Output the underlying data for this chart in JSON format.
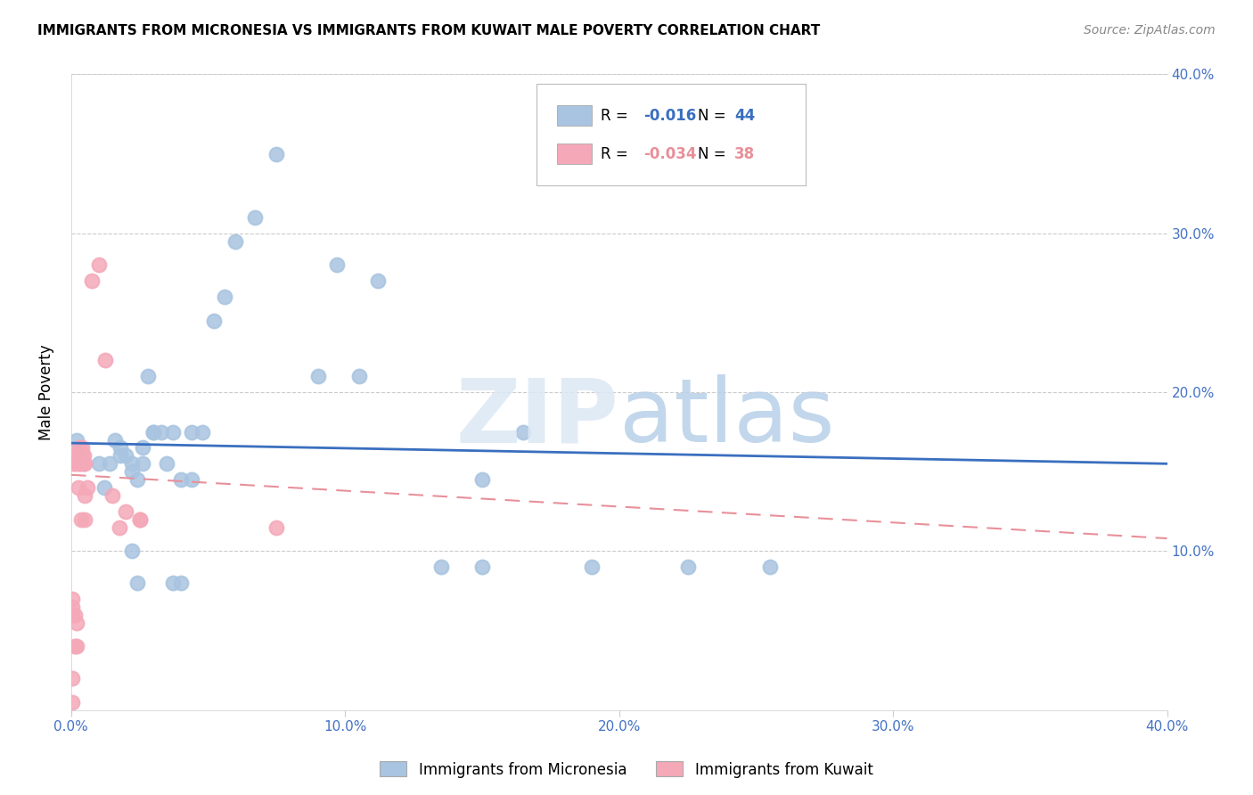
{
  "title": "IMMIGRANTS FROM MICRONESIA VS IMMIGRANTS FROM KUWAIT MALE POVERTY CORRELATION CHART",
  "source": "Source: ZipAtlas.com",
  "ylabel": "Male Poverty",
  "xlim": [
    0.0,
    0.4
  ],
  "ylim": [
    0.0,
    0.4
  ],
  "xtick_vals": [
    0.0,
    0.1,
    0.2,
    0.3,
    0.4
  ],
  "ytick_vals": [
    0.1,
    0.2,
    0.3,
    0.4
  ],
  "blue_R": -0.016,
  "blue_N": 44,
  "pink_R": -0.034,
  "pink_N": 38,
  "blue_color": "#a8c4e0",
  "pink_color": "#f4a8b8",
  "blue_line_color": "#3a6fbf",
  "pink_line_color": "#e8909a",
  "blue_scatter_x": [
    0.002,
    0.003,
    0.01,
    0.012,
    0.014,
    0.016,
    0.018,
    0.018,
    0.02,
    0.022,
    0.022,
    0.022,
    0.024,
    0.024,
    0.026,
    0.026,
    0.028,
    0.03,
    0.03,
    0.033,
    0.035,
    0.037,
    0.037,
    0.04,
    0.04,
    0.044,
    0.044,
    0.048,
    0.052,
    0.056,
    0.06,
    0.067,
    0.075,
    0.09,
    0.097,
    0.105,
    0.112,
    0.135,
    0.15,
    0.15,
    0.165,
    0.19,
    0.225,
    0.255
  ],
  "blue_scatter_y": [
    0.17,
    0.16,
    0.155,
    0.14,
    0.155,
    0.17,
    0.165,
    0.16,
    0.16,
    0.155,
    0.15,
    0.1,
    0.145,
    0.08,
    0.155,
    0.165,
    0.21,
    0.175,
    0.175,
    0.175,
    0.155,
    0.175,
    0.08,
    0.08,
    0.145,
    0.175,
    0.145,
    0.175,
    0.245,
    0.26,
    0.295,
    0.31,
    0.35,
    0.21,
    0.28,
    0.21,
    0.27,
    0.09,
    0.145,
    0.09,
    0.175,
    0.09,
    0.09,
    0.09
  ],
  "pink_scatter_x": [
    0.0005,
    0.0005,
    0.0005,
    0.0005,
    0.0005,
    0.001,
    0.001,
    0.0015,
    0.0015,
    0.0015,
    0.002,
    0.002,
    0.0025,
    0.0025,
    0.0025,
    0.003,
    0.003,
    0.003,
    0.0035,
    0.0035,
    0.004,
    0.004,
    0.004,
    0.0045,
    0.0045,
    0.005,
    0.005,
    0.005,
    0.006,
    0.0075,
    0.01,
    0.0125,
    0.015,
    0.0175,
    0.02,
    0.025,
    0.025,
    0.075
  ],
  "pink_scatter_y": [
    0.005,
    0.02,
    0.06,
    0.065,
    0.07,
    0.155,
    0.16,
    0.04,
    0.06,
    0.155,
    0.04,
    0.055,
    0.14,
    0.155,
    0.16,
    0.155,
    0.16,
    0.165,
    0.12,
    0.16,
    0.155,
    0.16,
    0.165,
    0.155,
    0.16,
    0.12,
    0.135,
    0.155,
    0.14,
    0.27,
    0.28,
    0.22,
    0.135,
    0.115,
    0.125,
    0.12,
    0.12,
    0.115
  ],
  "blue_trend_x": [
    0.0,
    0.4
  ],
  "blue_trend_y": [
    0.168,
    0.155
  ],
  "pink_trend_x": [
    0.0,
    0.4
  ],
  "pink_trend_y": [
    0.148,
    0.108
  ]
}
